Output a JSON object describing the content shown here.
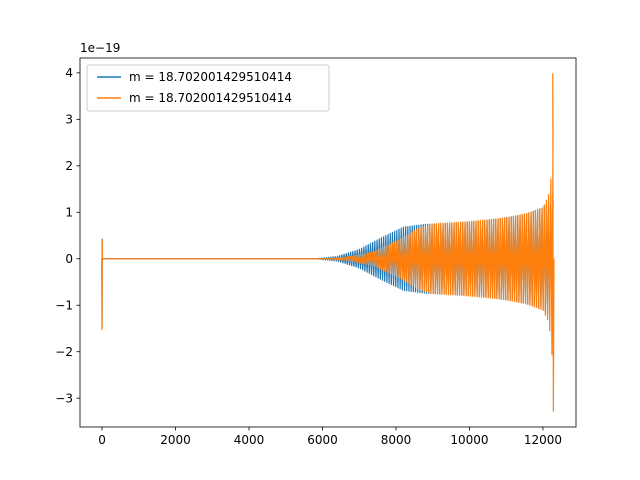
{
  "chart_data": {
    "type": "line",
    "title": "",
    "xlabel": "",
    "ylabel": "",
    "y_scale_label": "1e−19",
    "xlim": [
      -600,
      12900
    ],
    "ylim": [
      -3.62,
      4.32
    ],
    "x_ticks": [
      {
        "value": 0,
        "label": "0"
      },
      {
        "value": 2000,
        "label": "2000"
      },
      {
        "value": 4000,
        "label": "4000"
      },
      {
        "value": 6000,
        "label": "6000"
      },
      {
        "value": 8000,
        "label": "8000"
      },
      {
        "value": 10000,
        "label": "10000"
      },
      {
        "value": 12000,
        "label": "12000"
      }
    ],
    "y_ticks": [
      {
        "value": -3,
        "label": "−3"
      },
      {
        "value": -2,
        "label": "−2"
      },
      {
        "value": -1,
        "label": "−1"
      },
      {
        "value": 0,
        "label": "0"
      },
      {
        "value": 1,
        "label": "1"
      },
      {
        "value": 2,
        "label": "2"
      },
      {
        "value": 3,
        "label": "3"
      },
      {
        "value": 4,
        "label": "4"
      }
    ],
    "grid": false,
    "legend_position": "top-left",
    "series": [
      {
        "name": "m = 18.702001429510414",
        "color": "#1f77b4",
        "envelope_x": [
          0,
          5800,
          6400,
          7000,
          7600,
          8200,
          8800,
          9500,
          10500,
          11500,
          12000,
          12300
        ],
        "envelope_y": [
          0,
          0,
          0.05,
          0.2,
          0.45,
          0.68,
          0.74,
          0.76,
          0.82,
          0.95,
          1.1,
          1.3
        ],
        "spike_x": [
          -5,
          0,
          5,
          10
        ],
        "spike_y": [
          0,
          -1.5,
          0.42,
          0
        ]
      },
      {
        "name": "m = 18.702001429510414",
        "color": "#ff7f0e",
        "envelope_x": [
          0,
          6000,
          6600,
          7000,
          7400,
          7800,
          8200,
          8600,
          9000,
          10000,
          11000,
          11600,
          12000,
          12150,
          12230,
          12270,
          12300
        ],
        "envelope_y": [
          0,
          0,
          0.03,
          0.08,
          0.15,
          0.3,
          0.45,
          0.65,
          0.75,
          0.8,
          0.88,
          0.98,
          1.1,
          1.35,
          1.8,
          2.5,
          3.9
        ],
        "end_peak_y": [
          3.98,
          -3.28
        ],
        "spike_x": [
          -5,
          0,
          5,
          10
        ],
        "spike_y": [
          0,
          -1.52,
          0.4,
          0
        ]
      }
    ]
  }
}
